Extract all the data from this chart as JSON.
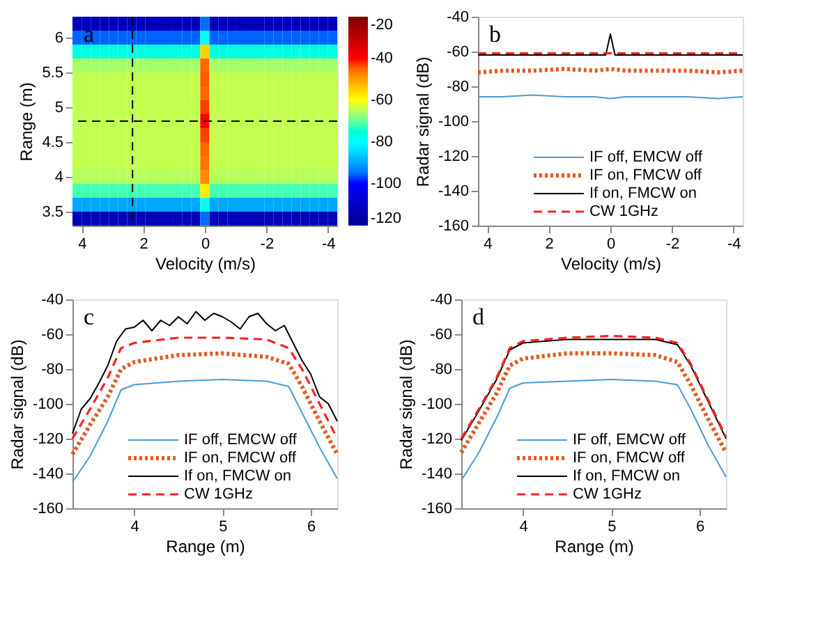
{
  "chart_data": [
    {
      "type": "heatmap",
      "annotations": [
        "a"
      ],
      "xlabel": "Velocity (m/s)",
      "ylabel": "Range (m)",
      "xlim": [
        4.3,
        -4.3
      ],
      "xticks": [
        4,
        2,
        0,
        -2,
        -4
      ],
      "ylim": [
        3.3,
        6.3
      ],
      "yticks": [
        3.5,
        4,
        4.5,
        5,
        5.5,
        6
      ],
      "clim": [
        -120,
        -20
      ],
      "cticks": [
        -120,
        -100,
        -80,
        -60,
        -40,
        -20
      ],
      "grid": false,
      "x": [
        4.15,
        3.85,
        3.56,
        3.26,
        2.97,
        2.67,
        2.37,
        2.08,
        1.78,
        1.48,
        1.19,
        0.89,
        0.59,
        0.3,
        0,
        -0.3,
        -0.59,
        -0.89,
        -1.19,
        -1.48,
        -1.78,
        -2.08,
        -2.37,
        -2.67,
        -2.97,
        -3.26,
        -3.56,
        -3.85,
        -4.15
      ],
      "y": [
        6.2,
        6.0,
        5.8,
        5.6,
        5.4,
        5.2,
        5.0,
        4.8,
        4.6,
        4.4,
        4.2,
        4.0,
        3.8,
        3.6,
        3.4
      ],
      "cells": [
        [
          -112,
          -112,
          -112,
          -112,
          -112,
          -112,
          -112,
          -112,
          -112,
          -112,
          -112,
          -112,
          -112,
          -112,
          -95,
          -112,
          -112,
          -112,
          -112,
          -112,
          -112,
          -112,
          -112,
          -112,
          -112,
          -112,
          -112,
          -112,
          -112
        ],
        [
          -96,
          -96,
          -96,
          -96,
          -96,
          -96,
          -96,
          -96,
          -96,
          -96,
          -96,
          -96,
          -96,
          -96,
          -80,
          -96,
          -96,
          -96,
          -96,
          -96,
          -96,
          -96,
          -96,
          -96,
          -96,
          -96,
          -96,
          -96,
          -96
        ],
        [
          -76,
          -76,
          -76,
          -76,
          -76,
          -76,
          -76,
          -76,
          -76,
          -76,
          -76,
          -76,
          -76,
          -76,
          -55,
          -76,
          -76,
          -76,
          -76,
          -76,
          -76,
          -76,
          -76,
          -76,
          -76,
          -76,
          -76,
          -76,
          -76
        ],
        [
          -66,
          -66,
          -66,
          -66,
          -66,
          -66,
          -66,
          -66,
          -66,
          -66,
          -66,
          -66,
          -66,
          -66,
          -45,
          -66,
          -66,
          -66,
          -66,
          -66,
          -66,
          -66,
          -66,
          -66,
          -66,
          -66,
          -66,
          -66,
          -66
        ],
        [
          -64,
          -64,
          -64,
          -64,
          -64,
          -64,
          -64,
          -64,
          -64,
          -64,
          -64,
          -64,
          -64,
          -64,
          -44,
          -64,
          -64,
          -64,
          -64,
          -64,
          -64,
          -64,
          -64,
          -64,
          -64,
          -64,
          -64,
          -64,
          -64
        ],
        [
          -64,
          -64,
          -64,
          -64,
          -64,
          -64,
          -64,
          -64,
          -64,
          -64,
          -64,
          -64,
          -64,
          -64,
          -45,
          -64,
          -64,
          -64,
          -64,
          -64,
          -64,
          -64,
          -64,
          -64,
          -64,
          -64,
          -64,
          -64,
          -64
        ],
        [
          -64,
          -64,
          -64,
          -64,
          -64,
          -64,
          -64,
          -64,
          -64,
          -64,
          -64,
          -64,
          -64,
          -64,
          -42,
          -64,
          -64,
          -64,
          -64,
          -64,
          -64,
          -64,
          -64,
          -64,
          -64,
          -64,
          -64,
          -64,
          -64
        ],
        [
          -64,
          -64,
          -64,
          -64,
          -64,
          -64,
          -64,
          -64,
          -64,
          -64,
          -64,
          -64,
          -64,
          -64,
          -40,
          -64,
          -64,
          -64,
          -64,
          -64,
          -64,
          -64,
          -64,
          -64,
          -64,
          -64,
          -64,
          -64,
          -64
        ],
        [
          -64,
          -64,
          -64,
          -64,
          -64,
          -64,
          -64,
          -64,
          -64,
          -64,
          -64,
          -64,
          -64,
          -64,
          -42,
          -64,
          -64,
          -64,
          -64,
          -64,
          -64,
          -64,
          -64,
          -64,
          -64,
          -64,
          -64,
          -64,
          -64
        ],
        [
          -64,
          -64,
          -64,
          -64,
          -64,
          -64,
          -64,
          -64,
          -64,
          -64,
          -64,
          -64,
          -64,
          -64,
          -45,
          -64,
          -64,
          -64,
          -64,
          -64,
          -64,
          -64,
          -64,
          -64,
          -64,
          -64,
          -64,
          -64,
          -64
        ],
        [
          -64,
          -64,
          -64,
          -64,
          -64,
          -64,
          -64,
          -64,
          -64,
          -64,
          -64,
          -64,
          -64,
          -64,
          -46,
          -64,
          -64,
          -64,
          -64,
          -64,
          -64,
          -64,
          -64,
          -64,
          -64,
          -64,
          -64,
          -64,
          -64
        ],
        [
          -65,
          -65,
          -65,
          -65,
          -65,
          -65,
          -65,
          -65,
          -65,
          -65,
          -65,
          -65,
          -65,
          -65,
          -48,
          -65,
          -65,
          -65,
          -65,
          -65,
          -65,
          -65,
          -65,
          -65,
          -65,
          -65,
          -65,
          -65,
          -65
        ],
        [
          -72,
          -72,
          -72,
          -72,
          -72,
          -72,
          -72,
          -72,
          -72,
          -72,
          -72,
          -72,
          -72,
          -72,
          -58,
          -72,
          -72,
          -72,
          -72,
          -72,
          -72,
          -72,
          -72,
          -72,
          -72,
          -72,
          -72,
          -72,
          -72
        ],
        [
          -90,
          -90,
          -90,
          -90,
          -90,
          -90,
          -90,
          -90,
          -90,
          -90,
          -90,
          -90,
          -90,
          -90,
          -78,
          -90,
          -90,
          -90,
          -90,
          -90,
          -90,
          -90,
          -90,
          -90,
          -90,
          -90,
          -90,
          -90,
          -90
        ],
        [
          -112,
          -112,
          -112,
          -112,
          -112,
          -112,
          -112,
          -112,
          -112,
          -112,
          -112,
          -112,
          -112,
          -112,
          -95,
          -112,
          -112,
          -112,
          -112,
          -112,
          -112,
          -112,
          -112,
          -112,
          -112,
          -112,
          -112,
          -112,
          -112
        ]
      ],
      "ref_lines": [
        {
          "axis": "x",
          "value": 2.35,
          "color": "#000000",
          "line_style": "dashed"
        },
        {
          "axis": "y",
          "value": 4.8,
          "color": "#000000",
          "line_style": "dashed"
        }
      ]
    },
    {
      "type": "line",
      "annotations": [
        "b"
      ],
      "xlabel": "Velocity (m/s)",
      "ylabel": "Radar signal (dB)",
      "xlim": [
        4.3,
        -4.3
      ],
      "xticks": [
        4,
        2,
        0,
        -2,
        -4
      ],
      "ylim": [
        -160,
        -40
      ],
      "yticks": [
        -160,
        -140,
        -120,
        -100,
        -80,
        -60,
        -40
      ],
      "grid": false,
      "legend": "bottom right",
      "series": [
        {
          "name": "IF off, EMCW off",
          "color": "#4a9ad8",
          "line_style": "solid",
          "x": [
            4.3,
            3.5,
            2.5,
            1.5,
            0.5,
            0,
            -0.5,
            -1.5,
            -2.5,
            -3.5,
            -4.3
          ],
          "values": [
            -86,
            -86,
            -85,
            -86,
            -86,
            -87,
            -86,
            -86,
            -86,
            -87,
            -86
          ]
        },
        {
          "name": "IF on, FMCW off",
          "color": "#e05a1e",
          "line_style": "dotted",
          "x": [
            4.3,
            3.5,
            2.5,
            1.5,
            0.5,
            0,
            -0.5,
            -1.5,
            -2.5,
            -3.5,
            -4.3
          ],
          "values": [
            -72,
            -71,
            -71,
            -70,
            -71,
            -70,
            -71,
            -71,
            -71,
            -72,
            -71
          ]
        },
        {
          "name": "If on, FMCW on",
          "color": "#000000",
          "line_style": "solid",
          "x": [
            4.3,
            3.5,
            2.5,
            1.5,
            0.5,
            0.15,
            0,
            -0.15,
            -0.5,
            -1.5,
            -2.5,
            -3.5,
            -4.3
          ],
          "values": [
            -62,
            -62,
            -62,
            -62,
            -62,
            -62,
            -50,
            -62,
            -62,
            -62,
            -62,
            -62,
            -62
          ]
        },
        {
          "name": "CW 1GHz",
          "color": "#ff2020",
          "line_style": "dashed",
          "x": [
            4.3,
            3.5,
            2.5,
            1.5,
            0.5,
            0,
            -0.5,
            -1.5,
            -2.5,
            -3.5,
            -4.3
          ],
          "values": [
            -61,
            -61,
            -61,
            -61,
            -61,
            -61,
            -61,
            -61,
            -61,
            -61,
            -61
          ]
        }
      ]
    },
    {
      "type": "line",
      "annotations": [
        "c"
      ],
      "xlabel": "Range (m)",
      "ylabel": "Radar signal (dB)",
      "xlim": [
        3.3,
        6.3
      ],
      "xticks": [
        4,
        5,
        6
      ],
      "ylim": [
        -160,
        -40
      ],
      "yticks": [
        -160,
        -140,
        -120,
        -100,
        -80,
        -60,
        -40
      ],
      "grid": false,
      "legend": "bottom right",
      "series": [
        {
          "name": "IF off, EMCW off",
          "color": "#4a9ad8",
          "line_style": "solid",
          "x": [
            3.3,
            3.5,
            3.7,
            3.85,
            4.0,
            4.5,
            5.0,
            5.5,
            5.75,
            5.9,
            6.1,
            6.3
          ],
          "values": [
            -145,
            -130,
            -110,
            -92,
            -89,
            -87,
            -86,
            -87,
            -90,
            -105,
            -125,
            -143
          ]
        },
        {
          "name": "IF on, FMCW off",
          "color": "#e05a1e",
          "line_style": "dotted",
          "x": [
            3.3,
            3.5,
            3.7,
            3.85,
            4.0,
            4.5,
            5.0,
            5.5,
            5.75,
            5.9,
            6.1,
            6.3
          ],
          "values": [
            -129,
            -112,
            -96,
            -80,
            -76,
            -72,
            -71,
            -73,
            -77,
            -90,
            -110,
            -129
          ]
        },
        {
          "name": "If on, FMCW on",
          "color": "#000000",
          "line_style": "solid",
          "x": [
            3.3,
            3.4,
            3.5,
            3.6,
            3.7,
            3.8,
            3.9,
            4.0,
            4.1,
            4.2,
            4.3,
            4.4,
            4.5,
            4.6,
            4.7,
            4.8,
            4.9,
            5.0,
            5.1,
            5.2,
            5.3,
            5.4,
            5.5,
            5.6,
            5.7,
            5.8,
            5.9,
            6.0,
            6.1,
            6.2,
            6.3
          ],
          "values": [
            -117,
            -103,
            -97,
            -88,
            -78,
            -64,
            -57,
            -56,
            -52,
            -58,
            -52,
            -55,
            -50,
            -54,
            -47,
            -52,
            -48,
            -50,
            -53,
            -57,
            -50,
            -48,
            -54,
            -58,
            -55,
            -65,
            -75,
            -83,
            -96,
            -100,
            -110
          ]
        },
        {
          "name": "CW 1GHz",
          "color": "#ff2020",
          "line_style": "dashed",
          "x": [
            3.3,
            3.5,
            3.7,
            3.85,
            4.0,
            4.5,
            5.0,
            5.5,
            5.75,
            5.9,
            6.1,
            6.3
          ],
          "values": [
            -120,
            -103,
            -85,
            -68,
            -65,
            -62,
            -62,
            -63,
            -68,
            -80,
            -100,
            -120
          ]
        }
      ]
    },
    {
      "type": "line",
      "annotations": [
        "d"
      ],
      "xlabel": "Range (m)",
      "ylabel": "Radar signal (dB)",
      "xlim": [
        3.3,
        6.3
      ],
      "xticks": [
        4,
        5,
        6
      ],
      "ylim": [
        -160,
        -40
      ],
      "yticks": [
        -160,
        -140,
        -120,
        -100,
        -80,
        -60,
        -40
      ],
      "grid": false,
      "legend": "bottom right",
      "series": [
        {
          "name": "IF off, EMCW off",
          "color": "#4a9ad8",
          "line_style": "solid",
          "x": [
            3.3,
            3.5,
            3.7,
            3.85,
            4.0,
            4.5,
            5.0,
            5.5,
            5.75,
            5.9,
            6.1,
            6.3
          ],
          "values": [
            -144,
            -128,
            -108,
            -91,
            -88,
            -87,
            -86,
            -87,
            -89,
            -103,
            -124,
            -142
          ]
        },
        {
          "name": "IF on, FMCW off",
          "color": "#e05a1e",
          "line_style": "dotted",
          "x": [
            3.3,
            3.5,
            3.7,
            3.85,
            4.0,
            4.5,
            5.0,
            5.5,
            5.75,
            5.9,
            6.1,
            6.3
          ],
          "values": [
            -128,
            -111,
            -94,
            -78,
            -74,
            -71,
            -71,
            -72,
            -76,
            -89,
            -109,
            -128
          ]
        },
        {
          "name": "If on, FMCW on",
          "color": "#000000",
          "line_style": "solid",
          "x": [
            3.3,
            3.5,
            3.7,
            3.85,
            4.0,
            4.5,
            5.0,
            5.5,
            5.75,
            5.9,
            6.1,
            6.3
          ],
          "values": [
            -121,
            -104,
            -86,
            -69,
            -65,
            -63,
            -63,
            -63,
            -66,
            -78,
            -99,
            -120
          ]
        },
        {
          "name": "CW 1GHz",
          "color": "#ff2020",
          "line_style": "dashed",
          "x": [
            3.3,
            3.5,
            3.7,
            3.85,
            4.0,
            4.5,
            5.0,
            5.5,
            5.75,
            5.9,
            6.1,
            6.3
          ],
          "values": [
            -120,
            -103,
            -85,
            -68,
            -64,
            -62,
            -61,
            -62,
            -65,
            -77,
            -98,
            -119
          ]
        }
      ]
    }
  ]
}
